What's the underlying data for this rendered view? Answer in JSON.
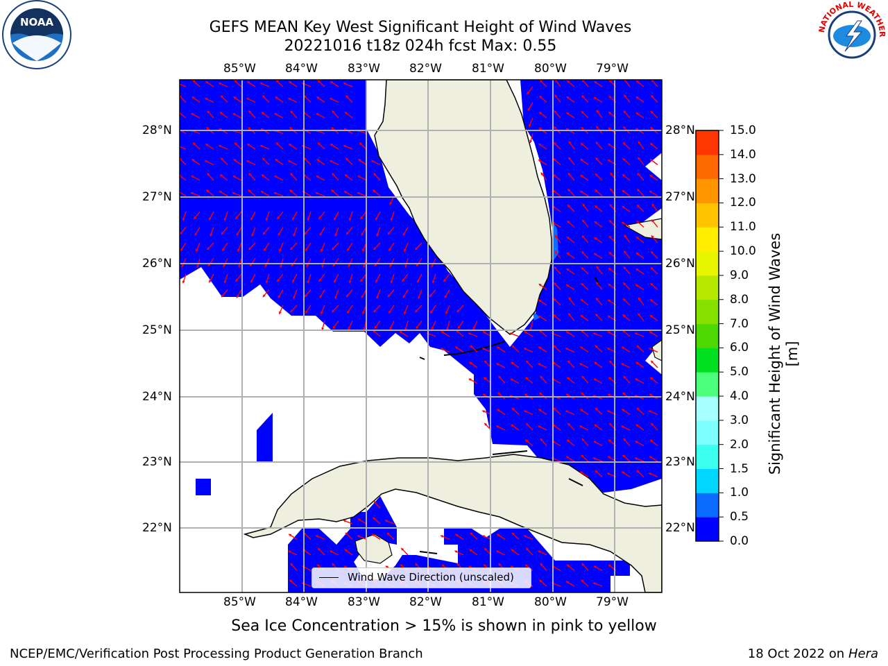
{
  "title": {
    "line1": "GEFS MEAN Key West Significant Height of Wind Waves",
    "line2": "20221016 t18z 024h fcst   Max: 0.55"
  },
  "map": {
    "lon_labels": [
      "85°W",
      "84°W",
      "83°W",
      "82°W",
      "81°W",
      "80°W",
      "79°W"
    ],
    "lat_labels": [
      "28°N",
      "27°N",
      "26°N",
      "25°N",
      "24°N",
      "23°N",
      "22°N"
    ],
    "ocean_color": "#0000ff",
    "land_color": "#efefdf",
    "grid_color": "#b0b0b0",
    "arrow_color": "#ff0000"
  },
  "colorbar": {
    "label": "Significant Height of Wind Waves [m]",
    "ticks": [
      "0.0",
      "0.5",
      "1.0",
      "1.5",
      "2.0",
      "3.0",
      "4.0",
      "5.0",
      "6.0",
      "7.0",
      "8.0",
      "9.0",
      "10.0",
      "11.0",
      "12.0",
      "13.0",
      "14.0",
      "15.0"
    ],
    "colors": [
      "#0000ff",
      "#0a6cff",
      "#00d6ff",
      "#3cfff0",
      "#7dffff",
      "#a8ffff",
      "#4bff7d",
      "#00e020",
      "#4cd800",
      "#86e000",
      "#b6e800",
      "#e8f500",
      "#ffee00",
      "#ffc400",
      "#ff9600",
      "#ff6a00",
      "#ff3600"
    ]
  },
  "legend": {
    "label": "Wind Wave Direction (unscaled)"
  },
  "footnote": "Sea Ice Concentration > 15% is shown in pink to yellow",
  "credits": {
    "left": "NCEP/EMC/Verification Post Processing Product Generation Branch",
    "right_date": "18 Oct 2022 on",
    "right_host": "Hera"
  },
  "logos": {
    "noaa": "NOAA",
    "nws": "NATIONAL WEATHER SERVICE"
  }
}
